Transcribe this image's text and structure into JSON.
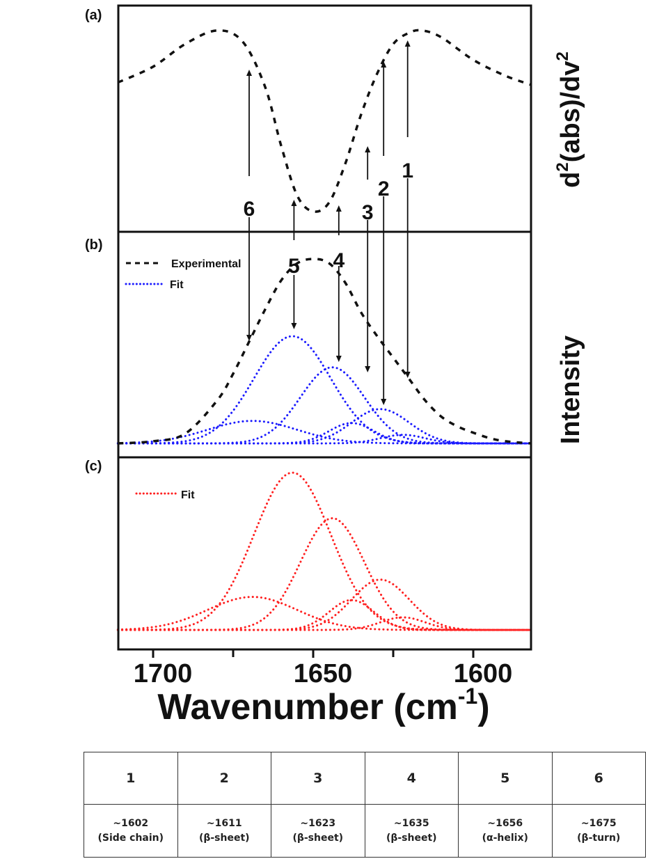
{
  "chart_data": [
    {
      "panel_label": "(a)",
      "type": "line",
      "ylabel": "d2(abs)/dv2",
      "ylabel_parts": {
        "a": "d",
        "sup1": "2",
        "b": "(abs)/dv",
        "sup2": "2"
      },
      "xlim": [
        1711,
        1582
      ],
      "ylim": [
        0,
        1
      ],
      "series": [
        {
          "style": "dashed",
          "color": "#111111",
          "points": [
            [
              1711,
              0.66
            ],
            [
              1700,
              0.73
            ],
            [
              1690,
              0.83
            ],
            [
              1680,
              0.89
            ],
            [
              1672,
              0.84
            ],
            [
              1665,
              0.64
            ],
            [
              1660,
              0.38
            ],
            [
              1655,
              0.16
            ],
            [
              1650,
              0.09
            ],
            [
              1645,
              0.13
            ],
            [
              1640,
              0.3
            ],
            [
              1635,
              0.52
            ],
            [
              1630,
              0.7
            ],
            [
              1625,
              0.83
            ],
            [
              1620,
              0.88
            ],
            [
              1616,
              0.89
            ],
            [
              1610,
              0.86
            ],
            [
              1600,
              0.76
            ],
            [
              1590,
              0.69
            ],
            [
              1582,
              0.65
            ]
          ]
        }
      ]
    },
    {
      "panel_label": "(b)",
      "type": "line",
      "ylabel": "Intensity",
      "xlim": [
        1711,
        1582
      ],
      "ylim": [
        0,
        1.97
      ],
      "legend": {
        "position": "top-left",
        "entries": [
          {
            "name": "Experimental",
            "style": "dashed",
            "color": "#111111"
          },
          {
            "name": "Fit",
            "style": "dotted",
            "color": "#1a1aff"
          }
        ]
      },
      "experimental": [
        [
          1711,
          0
        ],
        [
          1700,
          0.02
        ],
        [
          1690,
          0.09
        ],
        [
          1680,
          0.4
        ],
        [
          1675,
          0.65
        ],
        [
          1670,
          0.95
        ],
        [
          1665,
          1.25
        ],
        [
          1660,
          1.52
        ],
        [
          1655,
          1.68
        ],
        [
          1650,
          1.72
        ],
        [
          1645,
          1.68
        ],
        [
          1640,
          1.5
        ],
        [
          1635,
          1.22
        ],
        [
          1630,
          1.0
        ],
        [
          1625,
          0.8
        ],
        [
          1620,
          0.6
        ],
        [
          1615,
          0.4
        ],
        [
          1610,
          0.25
        ],
        [
          1605,
          0.16
        ],
        [
          1600,
          0.1
        ],
        [
          1595,
          0.05
        ],
        [
          1590,
          0.02
        ],
        [
          1582,
          0
        ]
      ],
      "fit_color": "#1a1aff"
    },
    {
      "panel_label": "(c)",
      "type": "line",
      "xlim": [
        1711,
        1582
      ],
      "ylim": [
        0,
        1.1
      ],
      "legend": {
        "position": "top-left",
        "entries": [
          {
            "name": "Fit",
            "style": "dotted",
            "color": "#ff2020"
          }
        ]
      },
      "fit_color": "#ff2020"
    }
  ],
  "fit_components": [
    {
      "center": 1656.5,
      "height": 1.0,
      "sigma": 12
    },
    {
      "center": 1644,
      "height": 0.71,
      "sigma": 10
    },
    {
      "center": 1669,
      "height": 0.21,
      "sigma": 14
    },
    {
      "center": 1638,
      "height": 0.19,
      "sigma": 7
    },
    {
      "center": 1629,
      "height": 0.32,
      "sigma": 9
    },
    {
      "center": 1622,
      "height": 0.08,
      "sigma": 7
    }
  ],
  "peak_markers": [
    {
      "label": "1",
      "wavenumber": 1620.5
    },
    {
      "label": "2",
      "wavenumber": 1628
    },
    {
      "label": "3",
      "wavenumber": 1633
    },
    {
      "label": "4",
      "wavenumber": 1642
    },
    {
      "label": "5",
      "wavenumber": 1656
    },
    {
      "label": "6",
      "wavenumber": 1670
    }
  ],
  "x_axis": {
    "title_main": "Wavenumber (cm",
    "title_sup": "-1",
    "title_close": ")",
    "ticks_major": [
      1700,
      1650,
      1600
    ],
    "ticks_minor": [
      1675,
      1625
    ],
    "tick_labels": [
      "1700",
      "1650",
      "1600"
    ],
    "reversed": true
  },
  "table": {
    "headers": [
      "1",
      "2",
      "3",
      "4",
      "5",
      "6"
    ],
    "values": [
      "~1602",
      "~1611",
      "~1623",
      "~1635",
      "~1656",
      "~1675"
    ],
    "assignments": [
      "(Side chain)",
      "(β-sheet)",
      "(β-sheet)",
      "(β-sheet)",
      "(α-helix)",
      "(β-turn)"
    ]
  }
}
